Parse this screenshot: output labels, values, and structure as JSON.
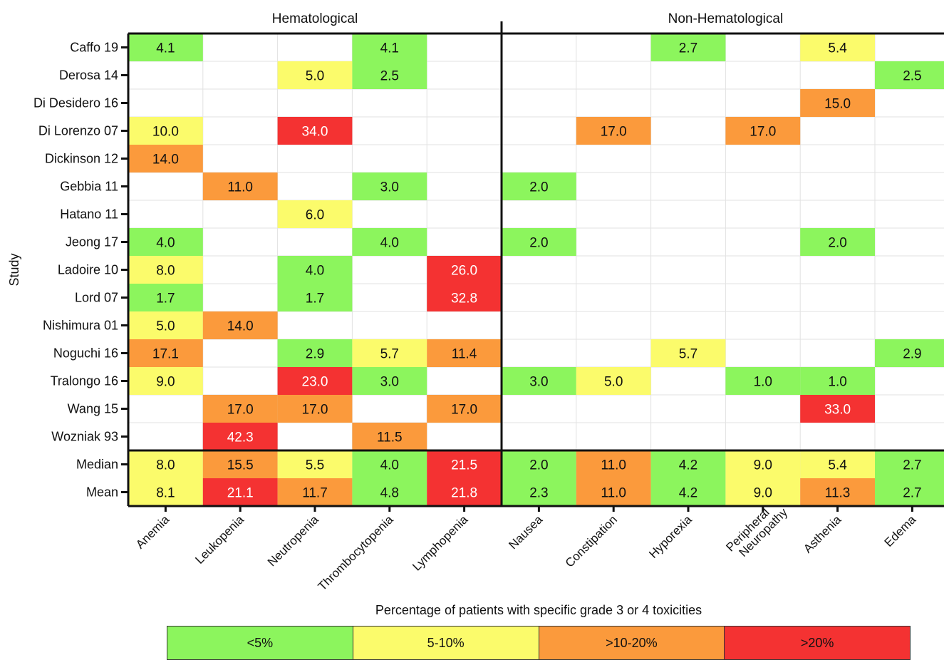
{
  "chart_data": {
    "type": "heatmap",
    "groups": [
      {
        "name": "Hematological",
        "columns": [
          "Anemia",
          "Leukopenia",
          "Neutropenia",
          "Thrombocytopenia",
          "Lymphopenia"
        ]
      },
      {
        "name": "Non-Hematological",
        "columns": [
          "Nausea",
          "Constipation",
          "Hyporexia",
          "Peripheral Neuropathy",
          "Asthenia",
          "Edema"
        ]
      }
    ],
    "columns": [
      "Anemia",
      "Leukopenia",
      "Neutropenia",
      "Thrombocytopenia",
      "Lymphopenia",
      "Nausea",
      "Constipation",
      "Hyporexia",
      "Peripheral Neuropathy",
      "Asthenia",
      "Edema"
    ],
    "rows": [
      "Caffo 19",
      "Derosa 14",
      "Di Desidero 16",
      "Di Lorenzo 07",
      "Dickinson 12",
      "Gebbia 11",
      "Hatano 11",
      "Jeong 17",
      "Ladoire 10",
      "Lord 07",
      "Nishimura 01",
      "Noguchi 16",
      "Tralongo 16",
      "Wang 15",
      "Wozniak 93",
      "Median",
      "Mean"
    ],
    "values": [
      [
        "4.1",
        "",
        "",
        "4.1",
        "",
        "",
        "",
        "2.7",
        "",
        "5.4",
        ""
      ],
      [
        "",
        "",
        "5.0",
        "2.5",
        "",
        "",
        "",
        "",
        "",
        "",
        "2.5"
      ],
      [
        "",
        "",
        "",
        "",
        "",
        "",
        "",
        "",
        "",
        "15.0",
        ""
      ],
      [
        "10.0",
        "",
        "34.0",
        "",
        "",
        "",
        "17.0",
        "",
        "17.0",
        "",
        ""
      ],
      [
        "14.0",
        "",
        "",
        "",
        "",
        "",
        "",
        "",
        "",
        "",
        ""
      ],
      [
        "",
        "11.0",
        "",
        "3.0",
        "",
        "2.0",
        "",
        "",
        "",
        "",
        ""
      ],
      [
        "",
        "",
        "6.0",
        "",
        "",
        "",
        "",
        "",
        "",
        "",
        ""
      ],
      [
        "4.0",
        "",
        "",
        "4.0",
        "",
        "2.0",
        "",
        "",
        "",
        "2.0",
        ""
      ],
      [
        "8.0",
        "",
        "4.0",
        "",
        "26.0",
        "",
        "",
        "",
        "",
        "",
        ""
      ],
      [
        "1.7",
        "",
        "1.7",
        "",
        "32.8",
        "",
        "",
        "",
        "",
        "",
        ""
      ],
      [
        "5.0",
        "14.0",
        "",
        "",
        "",
        "",
        "",
        "",
        "",
        "",
        ""
      ],
      [
        "17.1",
        "",
        "2.9",
        "5.7",
        "11.4",
        "",
        "",
        "5.7",
        "",
        "",
        "2.9"
      ],
      [
        "9.0",
        "",
        "23.0",
        "3.0",
        "",
        "3.0",
        "5.0",
        "",
        "1.0",
        "1.0",
        ""
      ],
      [
        "",
        "17.0",
        "17.0",
        "",
        "17.0",
        "",
        "",
        "",
        "",
        "33.0",
        ""
      ],
      [
        "",
        "42.3",
        "",
        "11.5",
        "",
        "",
        "",
        "",
        "",
        "",
        ""
      ],
      [
        "8.0",
        "15.5",
        "5.5",
        "4.0",
        "21.5",
        "2.0",
        "11.0",
        "4.2",
        "9.0",
        "5.4",
        "2.7"
      ],
      [
        "8.1",
        "21.1",
        "11.7",
        "4.8",
        "21.8",
        "2.3",
        "11.0",
        "4.2",
        "9.0",
        "11.3",
        "2.7"
      ]
    ],
    "ylabel": "Study",
    "legend_title": "Percentage of patients with specific grade 3 or 4 toxicities",
    "legend": [
      {
        "label": "<5%",
        "color": "#8cf55d"
      },
      {
        "label": "5-10%",
        "color": "#fbfb6b"
      },
      {
        "label": ">10-20%",
        "color": "#fb9a3c"
      },
      {
        "label": ">20%",
        "color": "#f43232"
      }
    ],
    "grid": true
  }
}
